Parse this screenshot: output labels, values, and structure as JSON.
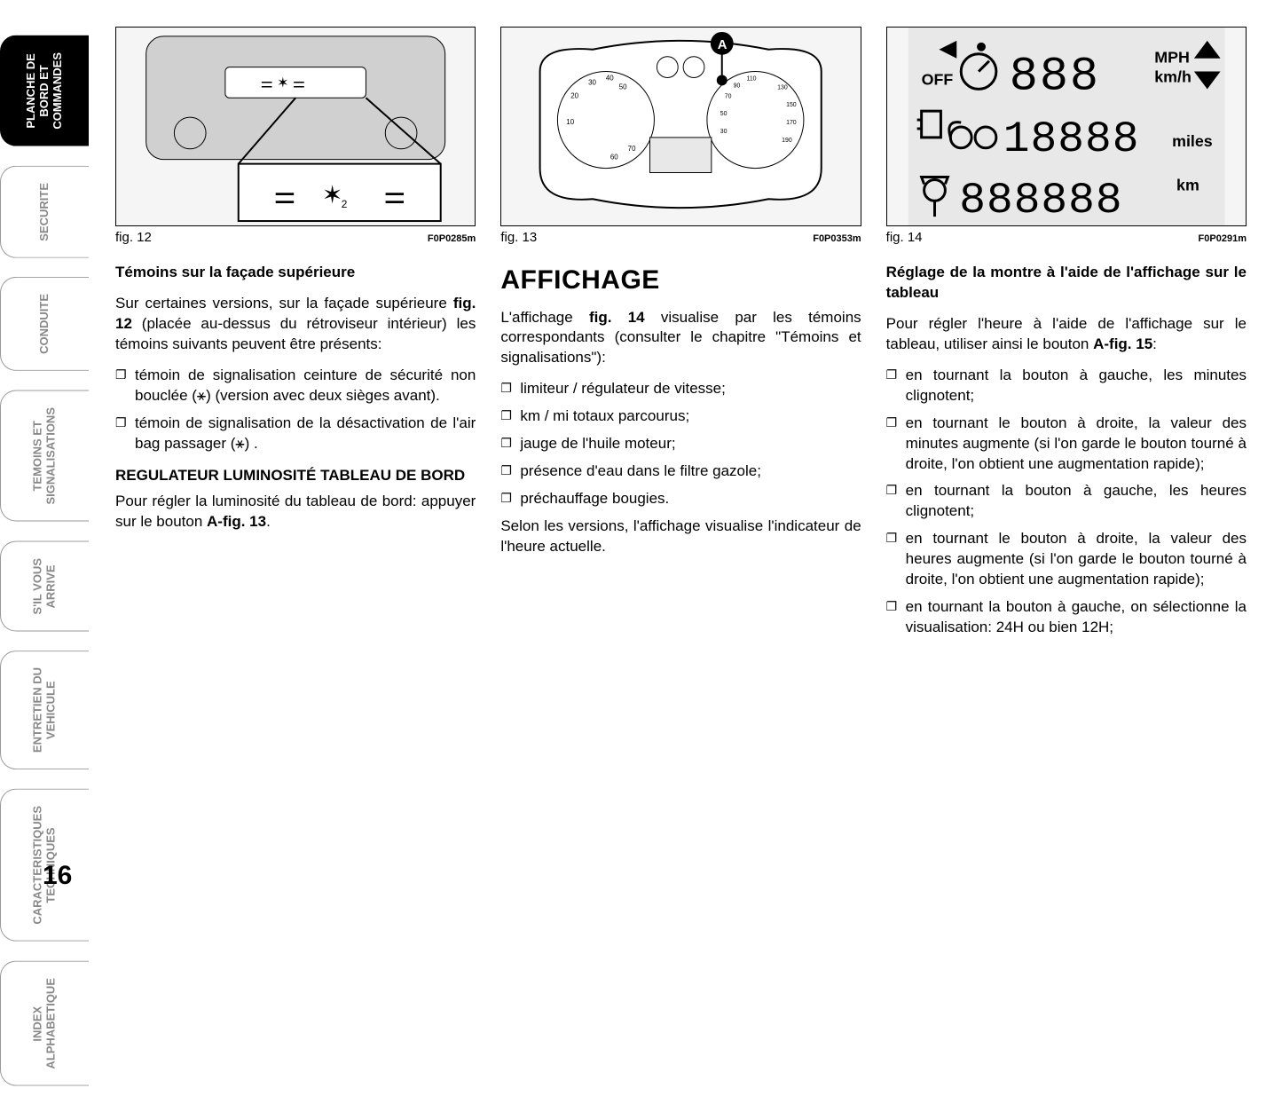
{
  "tabs": [
    {
      "label": "PLANCHE DE\nBORD ET\nCOMMANDES",
      "active": true
    },
    {
      "label": "SECURITE",
      "active": false
    },
    {
      "label": "CONDUITE",
      "active": false
    },
    {
      "label": "TEMOINS ET\nSIGNALISATIONS",
      "active": false
    },
    {
      "label": "S'IL VOUS\nARRIVE",
      "active": false
    },
    {
      "label": "ENTRETIEN DU\nVEHICULE",
      "active": false
    },
    {
      "label": "CARACTERISTIQUES\nTECHNIQUES",
      "active": false
    },
    {
      "label": "INDEX\nALPHABETIQUE",
      "active": false
    }
  ],
  "figures": {
    "f12": {
      "caption": "fig. 12",
      "code": "F0P0285m"
    },
    "f13": {
      "caption": "fig. 13",
      "code": "F0P0353m",
      "labelA": "A"
    },
    "f14": {
      "caption": "fig. 14",
      "code": "F0P0291m",
      "disp_mph": "MPH",
      "disp_kmh": "km/h",
      "disp_miles": "miles",
      "disp_km": "km",
      "disp_off": "OFF"
    }
  },
  "col1": {
    "h1": "Témoins sur la façade supérieure",
    "p1a": "Sur certaines versions, sur la façade supérieure ",
    "p1b": "fig. 12",
    "p1c": " (placée au-dessus du rétroviseur intérieur) les témoins suivants peuvent être présents:",
    "bullets": [
      "témoin de signalisation ceinture de sécurité non bouclée (⚹) (version avec deux sièges avant).",
      "témoin de signalisation de la désactivation de l'air bag passager (⚹) ."
    ],
    "h2": "REGULATEUR LUMINOSITÉ TABLEAU DE BORD",
    "p2a": "Pour régler la luminosité du tableau de bord: appuyer sur le bouton ",
    "p2b": "A-fig. 13",
    "p2c": "."
  },
  "col2": {
    "title": "AFFICHAGE",
    "p1a": "L'affichage ",
    "p1b": "fig. 14",
    "p1c": " visualise par les témoins correspondants (consulter le chapitre \"Témoins et signalisations\"):",
    "bullets": [
      "limiteur / régulateur de vitesse;",
      "km / mi totaux parcourus;",
      "jauge de l'huile moteur;",
      "présence d'eau dans le filtre gazole;",
      "préchauffage bougies."
    ],
    "p2": "Selon les versions, l'affichage visualise l'indicateur de l'heure actuelle."
  },
  "col3": {
    "h1": "Réglage de la montre à l'aide de l'affichage sur le tableau",
    "p1a": "Pour régler l'heure à l'aide de l'affichage sur le tableau, utiliser ainsi le bouton ",
    "p1b": "A-fig. 15",
    "p1c": ":",
    "bullets": [
      "en tournant la bouton à gauche, les minutes clignotent;",
      "en tournant le bouton à droite, la valeur des minutes augmente (si l'on garde le bouton tourné à droite, l'on obtient une augmentation rapide);",
      "en tournant la bouton à gauche, les heures clignotent;",
      "en tournant le bouton à droite, la valeur des heures augmente (si l'on garde le bouton tourné à droite, l'on obtient une augmentation rapide);",
      "en tournant la bouton à gauche, on sélectionne la visualisation: 24H ou bien 12H;"
    ]
  },
  "pageNumber": "16",
  "colors": {
    "text": "#000000",
    "inactive": "#888888",
    "bg": "#ffffff",
    "figbg": "#f5f5f5"
  }
}
